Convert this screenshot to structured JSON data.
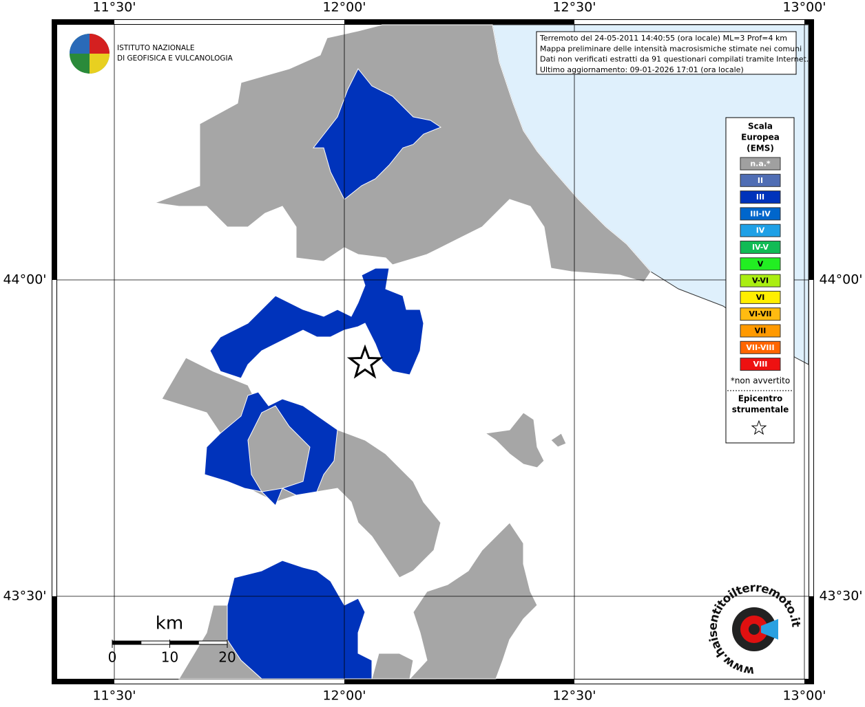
{
  "header": {
    "logo_line_1": "ISTITUTO NAZIONALE",
    "logo_line_2": "DI GEOFISICA E VULCANOLOGIA"
  },
  "info": {
    "lines": [
      "Terremoto del 24-05-2011 14:40:55 (ora locale) ML=3 Prof=4 km",
      "Mappa preliminare delle intensità macrosismiche stimate nei comuni",
      "Dati non verificati estratti da 91 questionari compilati tramite Internet.",
      "Ultimo aggiornamento: 09-01-2026 17:01 (ora locale)"
    ]
  },
  "map": {
    "lon_ticks": [
      {
        "value": 11.5,
        "label": "11°30'"
      },
      {
        "value": 12.0,
        "label": "12°00'"
      },
      {
        "value": 12.5,
        "label": "12°30'"
      },
      {
        "value": 13.0,
        "label": "13°00'"
      }
    ],
    "lat_ticks": [
      {
        "value": 44.0,
        "label": "44°00'"
      },
      {
        "value": 43.5,
        "label": "43°30'"
      }
    ]
  },
  "legend": {
    "title": [
      "Scala",
      "Europea",
      "(EMS)"
    ],
    "items": [
      {
        "label": "n.a.*",
        "color": "#a0a0a0"
      },
      {
        "label": "II",
        "color": "#4f6db4"
      },
      {
        "label": "III",
        "color": "#0033bb"
      },
      {
        "label": "III-IV",
        "color": "#0066cc"
      },
      {
        "label": "IV",
        "color": "#1ea0e6"
      },
      {
        "label": "IV-V",
        "color": "#11bb55"
      },
      {
        "label": "V",
        "color": "#22ee22"
      },
      {
        "label": "V-VI",
        "color": "#aaee11"
      },
      {
        "label": "VI",
        "color": "#ffee00"
      },
      {
        "label": "VI-VII",
        "color": "#ffbb11"
      },
      {
        "label": "VII",
        "color": "#ff9900"
      },
      {
        "label": "VII-VIII",
        "color": "#ff6600"
      },
      {
        "label": "VIII",
        "color": "#ee1111"
      }
    ],
    "footnote": "*non avvertito",
    "epicenter_label": [
      "Epicentro",
      "strumentale"
    ]
  },
  "scale_bar": {
    "unit": "km",
    "ticks": [
      0,
      10,
      20
    ]
  },
  "badge": {
    "text": "www.haisentitoilterremoto.it"
  }
}
